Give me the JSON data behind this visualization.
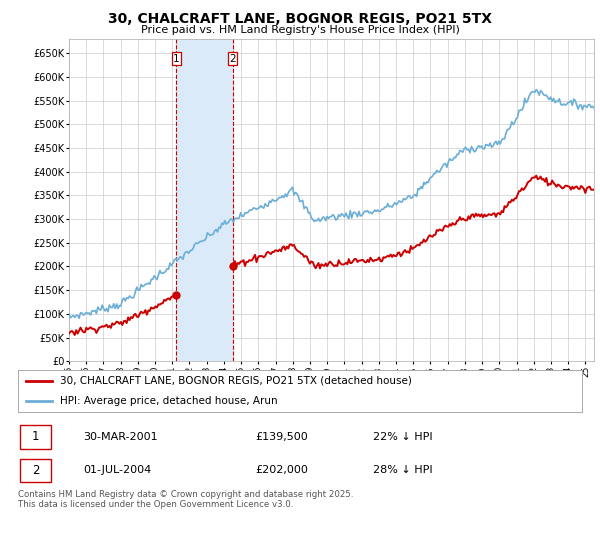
{
  "title": "30, CHALCRAFT LANE, BOGNOR REGIS, PO21 5TX",
  "subtitle": "Price paid vs. HM Land Registry's House Price Index (HPI)",
  "ylim": [
    0,
    680000
  ],
  "yticks": [
    0,
    50000,
    100000,
    150000,
    200000,
    250000,
    300000,
    350000,
    400000,
    450000,
    500000,
    550000,
    600000,
    650000
  ],
  "ytick_labels": [
    "£0",
    "£50K",
    "£100K",
    "£150K",
    "£200K",
    "£250K",
    "£300K",
    "£350K",
    "£400K",
    "£450K",
    "£500K",
    "£550K",
    "£600K",
    "£650K"
  ],
  "hpi_color": "#6baed6",
  "price_color": "#cc0000",
  "purchase1_date": 2001.24,
  "purchase1_price": 139500,
  "purchase2_date": 2004.5,
  "purchase2_price": 202000,
  "legend_label1": "30, CHALCRAFT LANE, BOGNOR REGIS, PO21 5TX (detached house)",
  "legend_label2": "HPI: Average price, detached house, Arun",
  "note1_label": "1",
  "note1_date": "30-MAR-2001",
  "note1_price": "£139,500",
  "note1_pct": "22% ↓ HPI",
  "note2_label": "2",
  "note2_date": "01-JUL-2004",
  "note2_price": "£202,000",
  "note2_pct": "28% ↓ HPI",
  "footer": "Contains HM Land Registry data © Crown copyright and database right 2025.\nThis data is licensed under the Open Government Licence v3.0.",
  "shade_color": "#daeaf8",
  "background_color": "#ffffff",
  "grid_color": "#cccccc",
  "xmin": 1995,
  "xmax": 2025.5
}
